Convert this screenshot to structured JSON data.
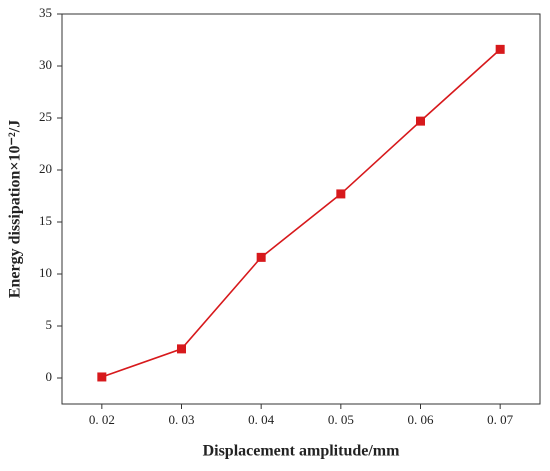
{
  "chart_data": {
    "type": "line",
    "x_label": "Displacement amplitude/mm",
    "y_label": "Energy dissipation×10⁻²/J",
    "series": [
      {
        "color": "#d7191c",
        "x": [
          0.02,
          0.03,
          0.04,
          0.05,
          0.06,
          0.07
        ],
        "values": [
          0.1,
          2.8,
          11.6,
          17.7,
          24.7,
          31.6
        ]
      }
    ],
    "xlim": [
      0.015,
      0.075
    ],
    "xticks": [
      {
        "value": 0.02,
        "label": "0. 02"
      },
      {
        "value": 0.03,
        "label": "0. 03"
      },
      {
        "value": 0.04,
        "label": "0. 04"
      },
      {
        "value": 0.05,
        "label": "0. 05"
      },
      {
        "value": 0.06,
        "label": "0. 06"
      },
      {
        "value": 0.07,
        "label": "0. 07"
      }
    ],
    "ylim": [
      -2.5,
      35
    ],
    "yticks": [
      0,
      5,
      10,
      15,
      20,
      25,
      30,
      35
    ]
  }
}
